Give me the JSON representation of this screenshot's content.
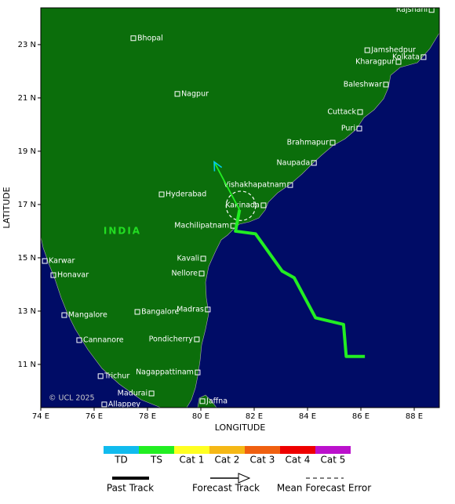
{
  "map": {
    "xlabel": "LONGITUDE",
    "ylabel": "LATITUDE",
    "country_label": "INDIA",
    "copyright": "© UCL 2025",
    "xlim": [
      74,
      88.94
    ],
    "ylim": [
      9.38,
      24.38
    ],
    "xticks": [
      {
        "value": 74,
        "label": "74 E"
      },
      {
        "value": 76,
        "label": "76 E"
      },
      {
        "value": 78,
        "label": "78 E"
      },
      {
        "value": 80,
        "label": "80 E"
      },
      {
        "value": 82,
        "label": "82 E"
      },
      {
        "value": 84,
        "label": "84 E"
      },
      {
        "value": 86,
        "label": "86 E"
      },
      {
        "value": 88,
        "label": "88 E"
      }
    ],
    "yticks": [
      {
        "value": 11,
        "label": "11 N"
      },
      {
        "value": 13,
        "label": "13 N"
      },
      {
        "value": 15,
        "label": "15 N"
      },
      {
        "value": 17,
        "label": "17 N"
      },
      {
        "value": 19,
        "label": "19 N"
      },
      {
        "value": 21,
        "label": "21 N"
      },
      {
        "value": 23,
        "label": "23 N"
      }
    ],
    "cities": [
      {
        "name": "Rajshahi",
        "lon": 88.65,
        "lat": 24.3,
        "label_side": "left"
      },
      {
        "name": "Bhopal",
        "lon": 77.47,
        "lat": 23.24,
        "label_side": "right"
      },
      {
        "name": "Jamshedpur",
        "lon": 86.24,
        "lat": 22.79,
        "label_side": "right"
      },
      {
        "name": "Kharagpur",
        "lon": 87.41,
        "lat": 22.35,
        "label_side": "left"
      },
      {
        "name": "Kolkata",
        "lon": 88.35,
        "lat": 22.53,
        "label_side": "left"
      },
      {
        "name": "Baleshwar",
        "lon": 86.94,
        "lat": 21.5,
        "label_side": "left"
      },
      {
        "name": "Nagpur",
        "lon": 79.12,
        "lat": 21.15,
        "label_side": "right"
      },
      {
        "name": "Cuttack",
        "lon": 85.97,
        "lat": 20.47,
        "label_side": "left"
      },
      {
        "name": "Puri",
        "lon": 85.94,
        "lat": 19.85,
        "label_side": "left"
      },
      {
        "name": "Brahmapur",
        "lon": 84.94,
        "lat": 19.32,
        "label_side": "left"
      },
      {
        "name": "Naupada",
        "lon": 84.24,
        "lat": 18.56,
        "label_side": "left"
      },
      {
        "name": "Vishakhapatnam",
        "lon": 83.35,
        "lat": 17.73,
        "label_side": "left"
      },
      {
        "name": "Hyderabad",
        "lon": 78.53,
        "lat": 17.38,
        "label_side": "right"
      },
      {
        "name": "Kakinada",
        "lon": 82.35,
        "lat": 16.97,
        "label_side": "left"
      },
      {
        "name": "Machilipatnam",
        "lon": 81.21,
        "lat": 16.2,
        "label_side": "left"
      },
      {
        "name": "Karwar",
        "lon": 74.15,
        "lat": 14.88,
        "label_side": "right"
      },
      {
        "name": "Honavar",
        "lon": 74.47,
        "lat": 14.35,
        "label_side": "right"
      },
      {
        "name": "Kavali",
        "lon": 80.09,
        "lat": 14.97,
        "label_side": "left"
      },
      {
        "name": "Nellore",
        "lon": 80.03,
        "lat": 14.41,
        "label_side": "left"
      },
      {
        "name": "Madras",
        "lon": 80.26,
        "lat": 13.06,
        "label_side": "left"
      },
      {
        "name": "Mangalore",
        "lon": 74.88,
        "lat": 12.85,
        "label_side": "right"
      },
      {
        "name": "Bangalore",
        "lon": 77.62,
        "lat": 12.97,
        "label_side": "right"
      },
      {
        "name": "Cannanore",
        "lon": 75.44,
        "lat": 11.91,
        "label_side": "right"
      },
      {
        "name": "Pondicherry",
        "lon": 79.85,
        "lat": 11.94,
        "label_side": "left"
      },
      {
        "name": "Trichur",
        "lon": 76.24,
        "lat": 10.56,
        "label_side": "right"
      },
      {
        "name": "Nagappattinam",
        "lon": 79.88,
        "lat": 10.7,
        "label_side": "left"
      },
      {
        "name": "Madurai",
        "lon": 78.15,
        "lat": 9.91,
        "label_side": "left"
      },
      {
        "name": "Allappey",
        "lon": 76.38,
        "lat": 9.5,
        "label_side": "right"
      },
      {
        "name": "Jaffna",
        "lon": 80.06,
        "lat": 9.62,
        "label_side": "right"
      }
    ],
    "past_track": {
      "color": "#22ee22",
      "lon": [
        86.15,
        85.45,
        85.35,
        84.3,
        83.5,
        83.05,
        82.05,
        81.3,
        81.45
      ],
      "lat": [
        11.3,
        11.3,
        12.5,
        12.75,
        14.25,
        14.5,
        15.9,
        16.0,
        16.8
      ]
    },
    "forecast_track": {
      "color": "#22ee22",
      "arrow_color": "#00ccee",
      "lon": [
        81.45,
        80.5
      ],
      "lat": [
        16.8,
        18.6
      ]
    },
    "mean_forecast_error": {
      "lon": 81.5,
      "lat": 16.95,
      "radius_deg": 0.55
    },
    "intensity_legend": [
      {
        "label": "TD",
        "color": "#11bbee"
      },
      {
        "label": "TS",
        "color": "#22ee22"
      },
      {
        "label": "Cat 1",
        "color": "#ffff22"
      },
      {
        "label": "Cat 2",
        "color": "#f5b816"
      },
      {
        "label": "Cat 3",
        "color": "#f06010"
      },
      {
        "label": "Cat 4",
        "color": "#ee0000"
      },
      {
        "label": "Cat 5",
        "color": "#bb11cc"
      }
    ],
    "line_legend": [
      "Past Track",
      "Forecast Track",
      "Mean Forecast Error"
    ]
  }
}
